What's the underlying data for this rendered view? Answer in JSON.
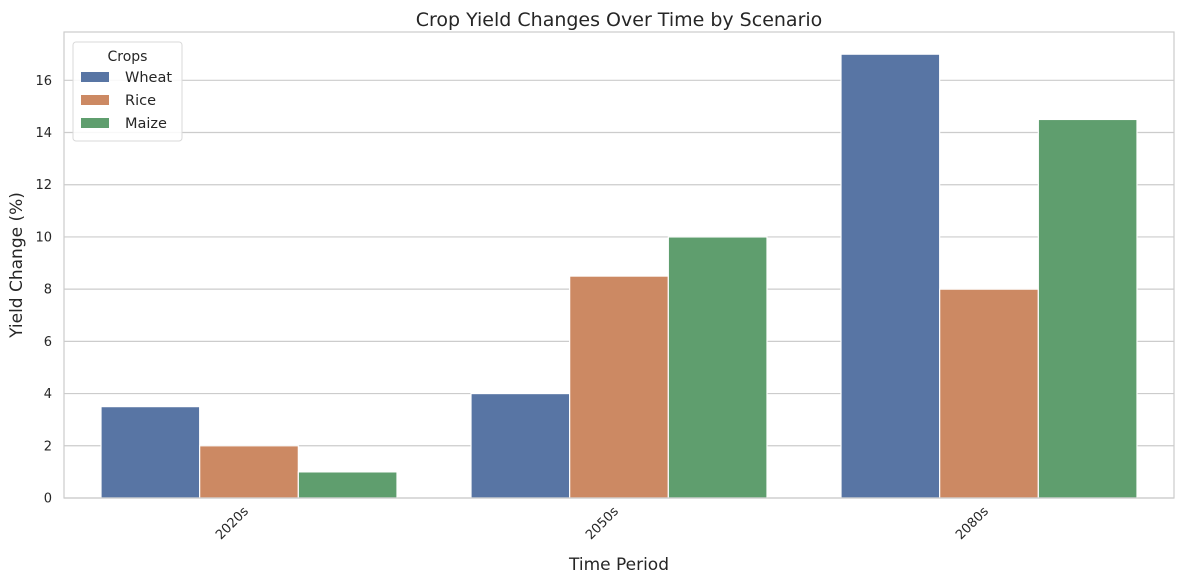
{
  "chart_data": {
    "type": "bar",
    "title": "Crop Yield Changes Over Time by Scenario",
    "xlabel": "Time Period",
    "ylabel": "Yield Change (%)",
    "categories": [
      "2020s",
      "2050s",
      "2080s"
    ],
    "series": [
      {
        "name": "Wheat",
        "color": "#5875a4",
        "values": [
          3.5,
          4,
          17
        ]
      },
      {
        "name": "Rice",
        "color": "#cc8963",
        "values": [
          2,
          8.5,
          8
        ]
      },
      {
        "name": "Maize",
        "color": "#5f9e6e",
        "values": [
          1,
          10,
          14.5
        ]
      }
    ],
    "ylim": [
      0,
      17.85
    ],
    "yticks": [
      "0",
      "2",
      "4",
      "6",
      "8",
      "10",
      "12",
      "14",
      "16"
    ],
    "grid": "horizontal",
    "legend": {
      "title": "Crops",
      "placement": "top-left"
    }
  }
}
